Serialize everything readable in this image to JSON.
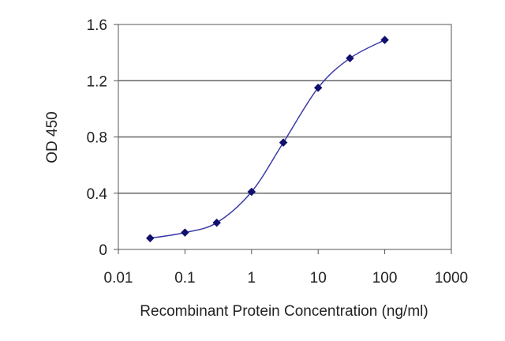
{
  "chart_data": {
    "type": "line",
    "title": "",
    "xlabel": "Recombinant Protein Concentration (ng/ml)",
    "ylabel": "OD 450",
    "x_scale": "log",
    "xlim": [
      0.01,
      1000
    ],
    "ylim": [
      0,
      1.6
    ],
    "x_ticks": [
      "0.01",
      "0.1",
      "1",
      "10",
      "100",
      "1000"
    ],
    "x_tick_values": [
      0.01,
      0.1,
      1,
      10,
      100,
      1000
    ],
    "y_ticks": [
      "0",
      "0.4",
      "0.8",
      "1.2",
      "1.6"
    ],
    "y_tick_values": [
      0,
      0.4,
      0.8,
      1.2,
      1.6
    ],
    "grid": "horizontal",
    "series": [
      {
        "x": [
          0.03,
          0.1,
          0.3,
          1,
          3,
          10,
          30,
          100
        ],
        "y": [
          0.08,
          0.12,
          0.19,
          0.41,
          0.76,
          1.15,
          1.36,
          1.49
        ]
      }
    ],
    "colors": {
      "line": "#3a3aa8",
      "marker": "#10106e",
      "grid": "#666666",
      "frame": "#555555"
    }
  }
}
